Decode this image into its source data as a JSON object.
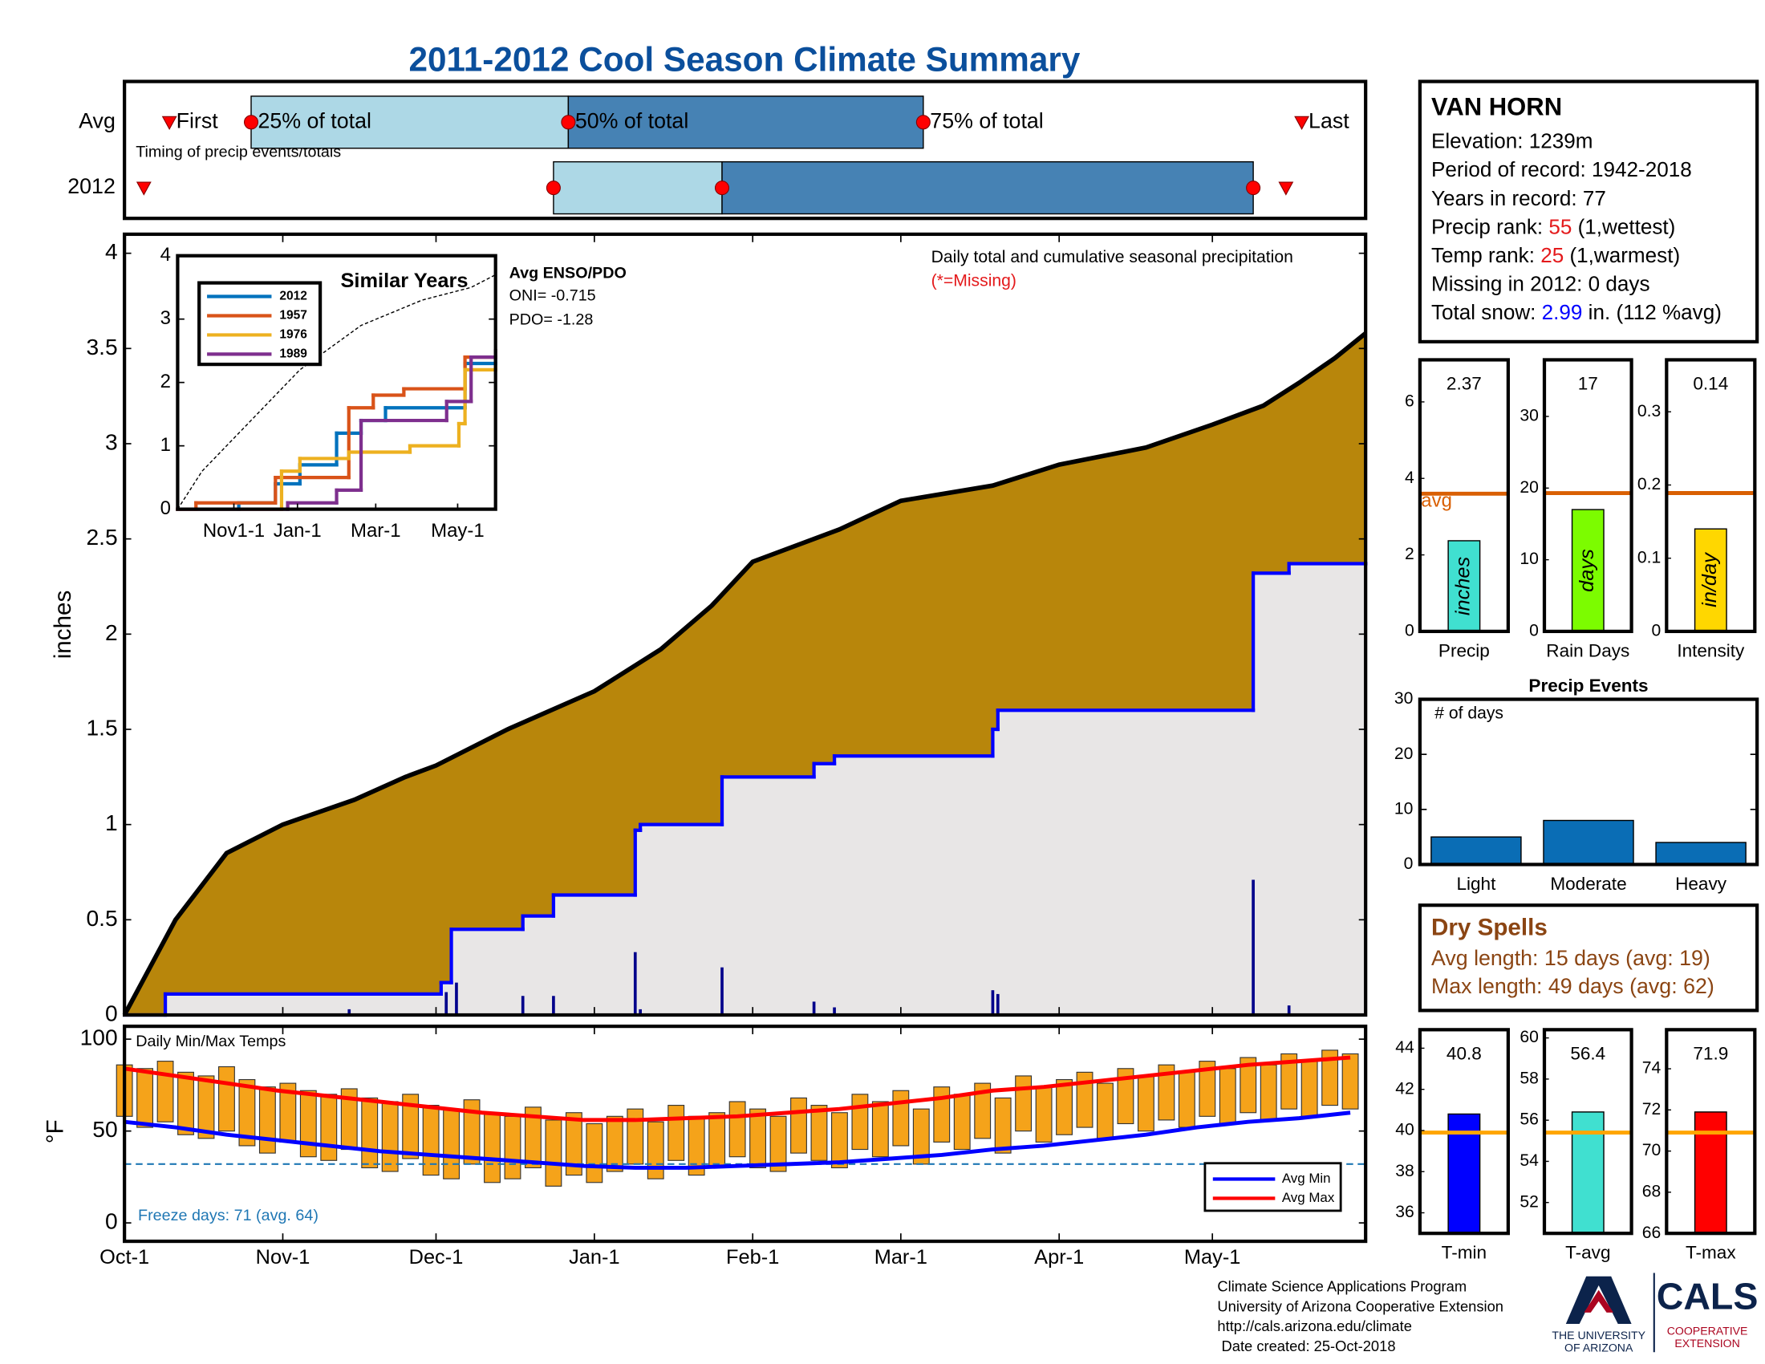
{
  "title": "2011-2012 Cool Season Climate Summary",
  "chart_data": [
    {
      "type": "timing",
      "categories": [
        "Avg",
        "2012"
      ],
      "first": [
        8.8,
        3.8
      ],
      "p25": [
        24.8,
        84
      ],
      "p50": [
        86.9,
        117
      ],
      "p75": [
        156.4,
        221
      ],
      "last": [
        230.5,
        227.4
      ],
      "labels": {
        "first": "First",
        "p25": "25% of total",
        "p50": "50% of total",
        "p75": "75% of total",
        "last": "Last"
      },
      "subtitle": "Timing of precip events/totals",
      "colors": {
        "light": "#add8e6",
        "dark": "#4682b4",
        "marker": "#ff0000"
      },
      "xlim": [
        0,
        243
      ]
    },
    {
      "type": "cumulative",
      "ylabel": "inches",
      "annotation": "Daily total and cumulative seasonal precipitation",
      "missing_note": "(*=Missing)",
      "xlim": [
        0,
        243
      ],
      "ylim": [
        0,
        4.1
      ],
      "yticks": [
        0,
        0.5,
        1,
        1.5,
        2,
        2.5,
        3,
        3.5,
        4
      ],
      "avg": {
        "color": "#b8860b",
        "x": [
          0,
          5,
          10,
          20,
          31,
          45,
          55,
          61,
          75,
          92,
          105,
          115,
          123,
          140,
          152,
          170,
          183,
          200,
          213,
          223,
          230,
          237,
          243
        ],
        "values": [
          0,
          0.25,
          0.5,
          0.85,
          1.0,
          1.13,
          1.25,
          1.31,
          1.5,
          1.7,
          1.92,
          2.15,
          2.38,
          2.55,
          2.7,
          2.78,
          2.89,
          2.98,
          3.1,
          3.2,
          3.32,
          3.45,
          3.58
        ]
      },
      "season": {
        "color": "#0000ff",
        "fill": "#e8e6e6",
        "x": [
          0,
          8,
          62,
          64,
          78,
          84,
          100,
          101,
          117,
          135,
          139,
          170,
          171,
          221,
          228,
          243
        ],
        "values": [
          0,
          0.11,
          0.17,
          0.45,
          0.52,
          0.63,
          0.97,
          1.0,
          1.25,
          1.32,
          1.36,
          1.5,
          1.6,
          2.32,
          2.37,
          2.37
        ]
      },
      "daily": {
        "color": "#00008b",
        "x": [
          8,
          44,
          63,
          65,
          78,
          84,
          100,
          101,
          117,
          135,
          139,
          170,
          171,
          221,
          228
        ],
        "values": [
          0.03,
          0.03,
          0.12,
          0.17,
          0.1,
          0.1,
          0.33,
          0.03,
          0.25,
          0.07,
          0.04,
          0.13,
          0.11,
          0.71,
          0.05
        ]
      }
    },
    {
      "type": "similar_years",
      "title": "Similar Years",
      "xlim": [
        0,
        260
      ],
      "ylim": [
        0,
        4
      ],
      "yticks": [
        0,
        1,
        2,
        3,
        4
      ],
      "xticks": [
        {
          "value": 46,
          "label": "Nov1-1"
        },
        {
          "value": 98,
          "label": "Jan-1"
        },
        {
          "value": 162,
          "label": "Mar-1"
        },
        {
          "value": 229,
          "label": "May-1"
        }
      ],
      "series": [
        {
          "name": "2012",
          "color": "#0072bd",
          "x": [
            0,
            50,
            80,
            100,
            130,
            150,
            170,
            235,
            260
          ],
          "values": [
            0,
            0.1,
            0.4,
            0.7,
            1.2,
            1.4,
            1.6,
            2.3,
            2.35
          ]
        },
        {
          "name": "1957",
          "color": "#d95319",
          "x": [
            0,
            15,
            80,
            140,
            160,
            185,
            235,
            260
          ],
          "values": [
            0,
            0.1,
            0.5,
            1.6,
            1.8,
            1.9,
            2.4,
            2.5
          ]
        },
        {
          "name": "1976",
          "color": "#edb120",
          "x": [
            0,
            85,
            100,
            140,
            190,
            230,
            235,
            260
          ],
          "values": [
            0,
            0.6,
            0.8,
            0.9,
            1.0,
            1.35,
            2.2,
            2.25
          ]
        },
        {
          "name": "1989",
          "color": "#7e2f8e",
          "x": [
            0,
            90,
            130,
            150,
            220,
            240,
            260
          ],
          "values": [
            0,
            0.1,
            0.3,
            1.4,
            1.7,
            2.4,
            2.5
          ]
        }
      ],
      "reference": {
        "x": [
          0,
          20,
          60,
          100,
          150,
          200,
          240,
          260
        ],
        "values": [
          0,
          0.6,
          1.4,
          2.2,
          2.9,
          3.3,
          3.5,
          3.7
        ]
      },
      "annotation": {
        "title": "Avg ENSO/PDO",
        "lines": [
          "ONI= -0.715",
          "PDO= -1.28"
        ]
      }
    },
    {
      "type": "temp_range",
      "title": "Daily Min/Max Temps",
      "ylabel": "°F",
      "xlim": [
        0,
        243
      ],
      "ylim": [
        -10,
        107
      ],
      "yticks": [
        0,
        50,
        100
      ],
      "xticks": [
        {
          "value": 0,
          "label": "Oct-1"
        },
        {
          "value": 31,
          "label": "Nov-1"
        },
        {
          "value": 61,
          "label": "Dec-1"
        },
        {
          "value": 92,
          "label": "Jan-1"
        },
        {
          "value": 123,
          "label": "Feb-1"
        },
        {
          "value": 152,
          "label": "Mar-1"
        },
        {
          "value": 183,
          "label": "Apr-1"
        },
        {
          "value": 213,
          "label": "May-1"
        }
      ],
      "bar_color": "#f5a31a",
      "x": [
        0,
        4,
        8,
        12,
        16,
        20,
        24,
        28,
        32,
        36,
        40,
        44,
        48,
        52,
        56,
        60,
        64,
        68,
        72,
        76,
        80,
        84,
        88,
        92,
        96,
        100,
        104,
        108,
        112,
        116,
        120,
        124,
        128,
        132,
        136,
        140,
        144,
        148,
        152,
        156,
        160,
        164,
        168,
        172,
        176,
        180,
        184,
        188,
        192,
        196,
        200,
        204,
        208,
        212,
        216,
        220,
        224,
        228,
        232,
        236,
        240
      ],
      "highs": [
        86,
        84,
        88,
        82,
        80,
        85,
        78,
        74,
        76,
        72,
        70,
        73,
        68,
        66,
        70,
        64,
        62,
        67,
        60,
        58,
        63,
        56,
        60,
        54,
        58,
        62,
        55,
        64,
        58,
        60,
        66,
        62,
        58,
        68,
        64,
        60,
        70,
        66,
        72,
        62,
        74,
        70,
        76,
        68,
        80,
        74,
        78,
        82,
        76,
        84,
        80,
        86,
        82,
        88,
        84,
        90,
        86,
        92,
        88,
        94,
        92
      ],
      "lows": [
        58,
        52,
        55,
        48,
        46,
        50,
        42,
        38,
        44,
        36,
        34,
        40,
        30,
        28,
        35,
        26,
        24,
        32,
        22,
        24,
        30,
        20,
        26,
        22,
        28,
        32,
        24,
        34,
        26,
        30,
        36,
        30,
        28,
        38,
        34,
        30,
        40,
        36,
        42,
        32,
        44,
        40,
        46,
        38,
        50,
        44,
        48,
        52,
        46,
        54,
        50,
        56,
        52,
        58,
        54,
        60,
        56,
        62,
        58,
        64,
        62
      ],
      "series": [
        {
          "name": "Avg Min",
          "color": "#0000ff",
          "x": [
            0,
            10,
            20,
            30,
            40,
            50,
            60,
            70,
            80,
            90,
            100,
            110,
            120,
            130,
            140,
            150,
            160,
            170,
            180,
            190,
            200,
            210,
            220,
            230,
            240
          ],
          "values": [
            55,
            52,
            48,
            45,
            42,
            39,
            37,
            35,
            33,
            31,
            30,
            30,
            31,
            32,
            33,
            35,
            37,
            40,
            42,
            45,
            48,
            52,
            55,
            57,
            60
          ]
        },
        {
          "name": "Avg Max",
          "color": "#ff0000",
          "x": [
            0,
            10,
            20,
            30,
            40,
            50,
            60,
            70,
            80,
            90,
            100,
            110,
            120,
            130,
            140,
            150,
            160,
            170,
            180,
            190,
            200,
            210,
            220,
            230,
            240
          ],
          "values": [
            84,
            80,
            76,
            72,
            69,
            66,
            63,
            60,
            58,
            56,
            56,
            57,
            58,
            60,
            62,
            65,
            68,
            72,
            74,
            77,
            80,
            83,
            86,
            88,
            90
          ]
        }
      ],
      "freeze_line": 32,
      "freeze_color": "#1f77b4",
      "freeze_note": "Freeze days: 71 (avg. 64)"
    },
    {
      "type": "bar_avg",
      "categories": [
        "Precip"
      ],
      "values": [
        2.37
      ],
      "bar_label": "inches",
      "avg": 3.6,
      "avg_label": "avg",
      "avg_color": "#d95f02",
      "color": "#40e0d0",
      "ylim": [
        0,
        7.1
      ],
      "yticks": [
        0,
        2,
        4,
        6
      ]
    },
    {
      "type": "bar_avg",
      "categories": [
        "Rain Days"
      ],
      "values": [
        17
      ],
      "bar_label": "days",
      "avg": 19.3,
      "avg_color": "#d95f02",
      "color": "#7cfc00",
      "ylim": [
        0,
        37.9
      ],
      "yticks": [
        0,
        10,
        20,
        30
      ]
    },
    {
      "type": "bar_avg",
      "categories": [
        "Intensity"
      ],
      "values": [
        0.14
      ],
      "bar_label": "in/day",
      "avg": 0.189,
      "avg_color": "#d95f02",
      "color": "#ffd700",
      "ylim": [
        0,
        0.371
      ],
      "yticks": [
        0,
        0.1,
        0.2,
        0.3
      ]
    },
    {
      "type": "bar",
      "title": "Precip Events",
      "note": "# of days",
      "categories": [
        "Light",
        "Moderate",
        "Heavy"
      ],
      "values": [
        5,
        8,
        4
      ],
      "color": "#0a6db5",
      "ylim": [
        0,
        30
      ],
      "yticks": [
        0,
        10,
        20,
        30
      ]
    },
    {
      "type": "bar_avg",
      "categories": [
        "T-min"
      ],
      "values": [
        40.8
      ],
      "avg": 39.9,
      "avg_color": "#ffa500",
      "color": "#0000ff",
      "ylim": [
        35,
        44.9
      ],
      "yticks": [
        36,
        38,
        40,
        42,
        44
      ]
    },
    {
      "type": "bar_avg",
      "categories": [
        "T-avg"
      ],
      "values": [
        56.4
      ],
      "avg": 55.4,
      "avg_color": "#ffa500",
      "color": "#40e0d0",
      "ylim": [
        50.5,
        60.4
      ],
      "yticks": [
        52,
        54,
        56,
        58,
        60
      ]
    },
    {
      "type": "bar_avg",
      "categories": [
        "T-max"
      ],
      "values": [
        71.9
      ],
      "avg": 70.9,
      "avg_color": "#ffa500",
      "color": "#ff0000",
      "ylim": [
        66,
        75.9
      ],
      "yticks": [
        66,
        68,
        70,
        72,
        74
      ]
    }
  ],
  "station": {
    "name": "VAN HORN",
    "lines": [
      [
        {
          "text": "Elevation: 1239m"
        }
      ],
      [
        {
          "text": "Period of record: 1942-2018"
        }
      ],
      [
        {
          "text": "Years in record: 77"
        }
      ],
      [
        {
          "text": "Precip rank: "
        },
        {
          "text": "55",
          "color": "#e41a1c"
        },
        {
          "text": " (1,wettest)"
        }
      ],
      [
        {
          "text": "Temp rank: "
        },
        {
          "text": "25",
          "color": "#e41a1c"
        },
        {
          "text": " (1,warmest)"
        }
      ],
      [
        {
          "text": "Missing in 2012: 0 days"
        }
      ],
      [
        {
          "text": "Total snow: "
        },
        {
          "text": "2.99",
          "color": "#0000ff"
        },
        {
          "text": " in. (112 %avg)"
        }
      ]
    ]
  },
  "dry_spells": {
    "title": "Dry Spells",
    "lines": [
      "Avg length: 15 days (avg: 19)",
      "Max length: 49 days (avg: 62)"
    ],
    "color": "#8b4513"
  },
  "footer": {
    "lines": [
      "Climate Science Applications Program",
      "University of Arizona Cooperative Extension",
      "http://cals.arizona.edu/climate",
      " Date created: 25-Oct-2018"
    ],
    "logo": {
      "university": [
        "THE UNIVERSITY",
        "OF ARIZONA"
      ],
      "cals": "CALS",
      "extension": [
        "COOPERATIVE",
        "EXTENSION"
      ]
    }
  }
}
